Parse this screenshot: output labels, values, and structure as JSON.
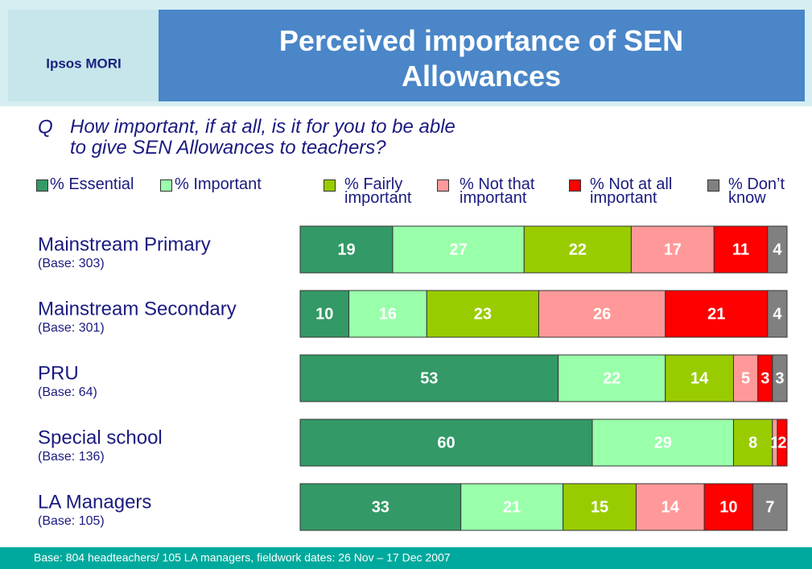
{
  "logo": "Ipsos MORI",
  "question_marker": "Q",
  "question": "How important, if at all, is it for you to be able to give SEN Allowances to teachers?",
  "footer": "Base:  804 headteachers/ 105 LA managers, fieldwork dates: 26 Nov – 17 Dec 2007",
  "chart_data": {
    "type": "bar",
    "orientation": "horizontal",
    "stacked": true,
    "title": "Perceived importance of SEN Allowances",
    "categories": [
      "Mainstream Primary",
      "Mainstream Secondary",
      "PRU",
      "Special school",
      "LA Managers"
    ],
    "bases": [
      "(Base: 303)",
      "(Base: 301)",
      "(Base: 64)",
      "(Base: 136)",
      "(Base: 105)"
    ],
    "xlim": [
      0,
      100
    ],
    "series": [
      {
        "name": "% Essential",
        "color": "#339966",
        "values": [
          19,
          10,
          53,
          60,
          33
        ]
      },
      {
        "name": "% Important",
        "color": "#99ffaa",
        "values": [
          27,
          16,
          22,
          29,
          21
        ]
      },
      {
        "name": "% Fairly important",
        "color": "#99cc00",
        "values": [
          22,
          23,
          14,
          8,
          15
        ]
      },
      {
        "name": "% Not that important",
        "color": "#ff9999",
        "values": [
          17,
          26,
          5,
          1,
          14
        ]
      },
      {
        "name": "% Not at all important",
        "color": "#ff0000",
        "values": [
          11,
          21,
          3,
          2,
          10
        ]
      },
      {
        "name": "% Don’t know",
        "color": "#808080",
        "values": [
          4,
          4,
          3,
          null,
          7
        ]
      }
    ]
  }
}
